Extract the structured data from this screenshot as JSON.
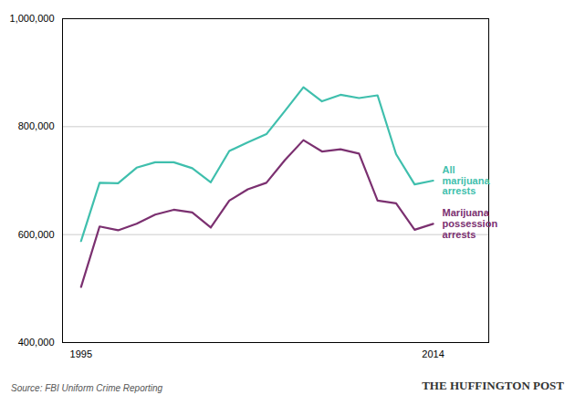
{
  "chart_data": {
    "type": "line",
    "x": [
      1995,
      1996,
      1997,
      1998,
      1999,
      2000,
      2001,
      2002,
      2003,
      2004,
      2005,
      2006,
      2007,
      2008,
      2009,
      2010,
      2011,
      2012,
      2013,
      2014
    ],
    "series": [
      {
        "name": "All\nmarijuana\narrests",
        "color": "#3fbfad",
        "values": [
          588000,
          696000,
          695000,
          724000,
          734000,
          734000,
          723000,
          697000,
          755000,
          771000,
          786000,
          829000,
          873000,
          847000,
          859000,
          853000,
          858000,
          749000,
          693000,
          700000
        ]
      },
      {
        "name": "Marijuana\npossession\narrests",
        "color": "#7b3070",
        "values": [
          503000,
          615000,
          608000,
          620000,
          637000,
          646000,
          641000,
          613000,
          663000,
          684000,
          696000,
          738000,
          775000,
          754000,
          758000,
          750000,
          663000,
          658000,
          609000,
          620000
        ]
      }
    ],
    "xlim": [
      1994,
      2017
    ],
    "xticks": [
      1995,
      2014
    ],
    "ylim": [
      400000,
      1000000
    ],
    "yticks": [
      {
        "value": 400000,
        "label": "400,000"
      },
      {
        "value": 600000,
        "label": "600,000"
      },
      {
        "value": 800000,
        "label": "800,000"
      },
      {
        "value": 1000000,
        "label": "1,000,000"
      }
    ],
    "grid": true,
    "annotations": [
      "Source: FBI Uniform Crime Reporting",
      "THE HUFFINGTON POST"
    ]
  }
}
